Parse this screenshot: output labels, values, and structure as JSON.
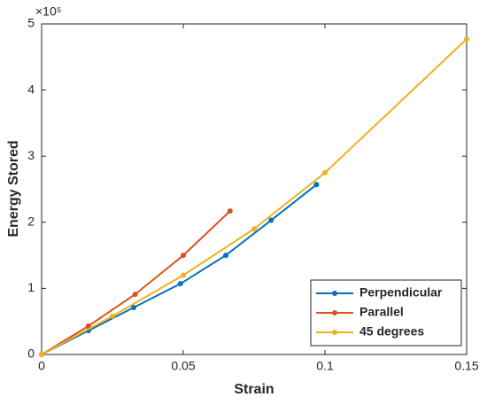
{
  "chart_data": {
    "type": "line",
    "x_label": "Strain",
    "y_label": "Energy Stored",
    "y_scale_label": "×10⁵",
    "xlim": [
      0,
      0.15
    ],
    "xticks": [
      0,
      0.05,
      0.1,
      0.15
    ],
    "ylim": [
      0,
      5
    ],
    "yticks": [
      0,
      1,
      2,
      3,
      4,
      5
    ],
    "legend_position": "lower-right",
    "series": [
      {
        "name": "Perpendicular",
        "color": "#0072BD",
        "x": [
          0,
          0.0165,
          0.0325,
          0.049,
          0.065,
          0.081,
          0.097
        ],
        "values": [
          0,
          0.36,
          0.71,
          1.07,
          1.5,
          2.03,
          2.57
        ]
      },
      {
        "name": "Parallel",
        "color": "#D95319",
        "x": [
          0,
          0.0165,
          0.033,
          0.05,
          0.0665
        ],
        "values": [
          0,
          0.43,
          0.91,
          1.5,
          2.17
        ]
      },
      {
        "name": "45 degrees",
        "color": "#EDB120",
        "x": [
          0,
          0.025,
          0.05,
          0.075,
          0.1,
          0.15
        ],
        "values": [
          0,
          0.58,
          1.2,
          1.9,
          2.75,
          4.77
        ]
      }
    ]
  }
}
